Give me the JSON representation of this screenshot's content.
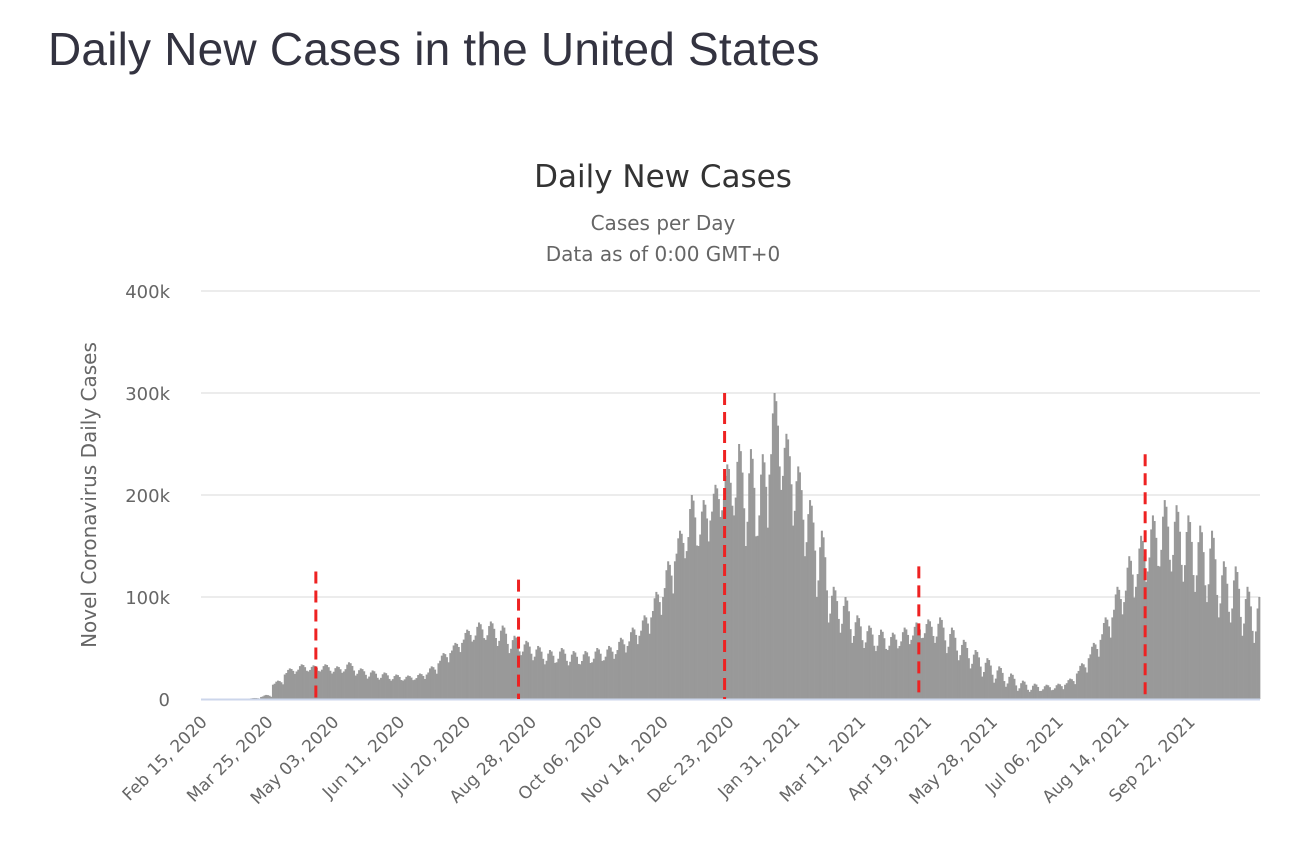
{
  "page": {
    "title": "Daily New Cases in the United States"
  },
  "chart_data": {
    "type": "bar",
    "title": "Daily New Cases",
    "subtitle_lines": [
      "Cases per Day",
      "Data as of 0:00 GMT+0"
    ],
    "xlabel": "",
    "ylabel": "Novel Coronavirus Daily Cases",
    "ylim": [
      0,
      400000
    ],
    "y_ticks": [
      0,
      100000,
      200000,
      300000,
      400000
    ],
    "y_tick_labels": [
      "0",
      "100k",
      "200k",
      "300k",
      "400k"
    ],
    "x_start_date": "2020-02-15",
    "x_tick_labels": [
      "Feb 15, 2020",
      "Mar 25, 2020",
      "May 03, 2020",
      "Jun 11, 2020",
      "Jul 20, 2020",
      "Aug 28, 2020",
      "Oct 06, 2020",
      "Nov 14, 2020",
      "Dec 23, 2020",
      "Jan 31, 2021",
      "Mar 11, 2021",
      "Apr 19, 2021",
      "May 28, 2021",
      "Jul 06, 2021",
      "Aug 14, 2021",
      "Sep 22, 2021"
    ],
    "x_tick_interval_days": 39,
    "total_days": 627,
    "grid": true,
    "legend": "none",
    "bar_color": "#999999",
    "grid_color": "#e6e6e6",
    "baseline_color": "#ccd6eb",
    "series": [
      {
        "name": "Daily Cases",
        "description": "Weekly peak and trough levels (cases/day), starting the week of Feb 15, 2020; each week rises from trough to peak midweek",
        "weekly_peak": [
          0,
          0,
          0,
          0,
          1000,
          4000,
          18000,
          30000,
          34000,
          33000,
          34000,
          32000,
          36000,
          30000,
          28000,
          26000,
          24000,
          23000,
          25000,
          32000,
          45000,
          55000,
          68000,
          75000,
          76000,
          72000,
          62000,
          57000,
          52000,
          48000,
          50000,
          47000,
          47000,
          50000,
          52000,
          60000,
          70000,
          82000,
          105000,
          135000,
          165000,
          200000,
          195000,
          210000,
          230000,
          250000,
          245000,
          240000,
          300000,
          260000,
          228000,
          195000,
          165000,
          110000,
          100000,
          82000,
          72000,
          68000,
          65000,
          70000,
          75000,
          78000,
          80000,
          70000,
          58000,
          48000,
          40000,
          32000,
          25000,
          18000,
          15000,
          14000,
          15000,
          20000,
          35000,
          55000,
          80000,
          110000,
          140000,
          160000,
          180000,
          195000,
          190000,
          180000,
          170000,
          165000,
          135000,
          130000,
          110000,
          100000,
          95000,
          85000
        ],
        "weekly_trough": [
          0,
          0,
          0,
          0,
          500,
          2000,
          14000,
          24000,
          27000,
          27000,
          27000,
          25000,
          27000,
          23000,
          20000,
          19000,
          18000,
          18000,
          19000,
          24000,
          35000,
          45000,
          55000,
          58000,
          58000,
          52000,
          45000,
          43000,
          38000,
          34000,
          36000,
          33000,
          34000,
          36000,
          38000,
          44000,
          52000,
          62000,
          80000,
          100000,
          135000,
          145000,
          150000,
          175000,
          185000,
          180000,
          150000,
          160000,
          220000,
          205000,
          170000,
          140000,
          100000,
          75000,
          65000,
          55000,
          50000,
          47000,
          48000,
          52000,
          58000,
          60000,
          55000,
          45000,
          38000,
          30000,
          22000,
          16000,
          12000,
          8000,
          7000,
          8000,
          9000,
          14000,
          25000,
          40000,
          58000,
          80000,
          95000,
          110000,
          125000,
          130000,
          125000,
          115000,
          105000,
          95000,
          80000,
          75000,
          62000,
          55000,
          50000,
          48000
        ]
      }
    ],
    "annotations": [
      {
        "type": "dashed-vertical-line",
        "color": "#ee2222",
        "date_offset_days": 68,
        "top_value": 125000
      },
      {
        "type": "dashed-vertical-line",
        "color": "#ee2222",
        "date_offset_days": 188,
        "top_value": 117000
      },
      {
        "type": "dashed-vertical-line",
        "color": "#ee2222",
        "date_offset_days": 310,
        "top_value": 300000
      },
      {
        "type": "dashed-vertical-line",
        "color": "#ee2222",
        "date_offset_days": 425,
        "top_value": 130000
      },
      {
        "type": "dashed-vertical-line",
        "color": "#ee2222",
        "date_offset_days": 559,
        "top_value": 240000
      }
    ]
  }
}
